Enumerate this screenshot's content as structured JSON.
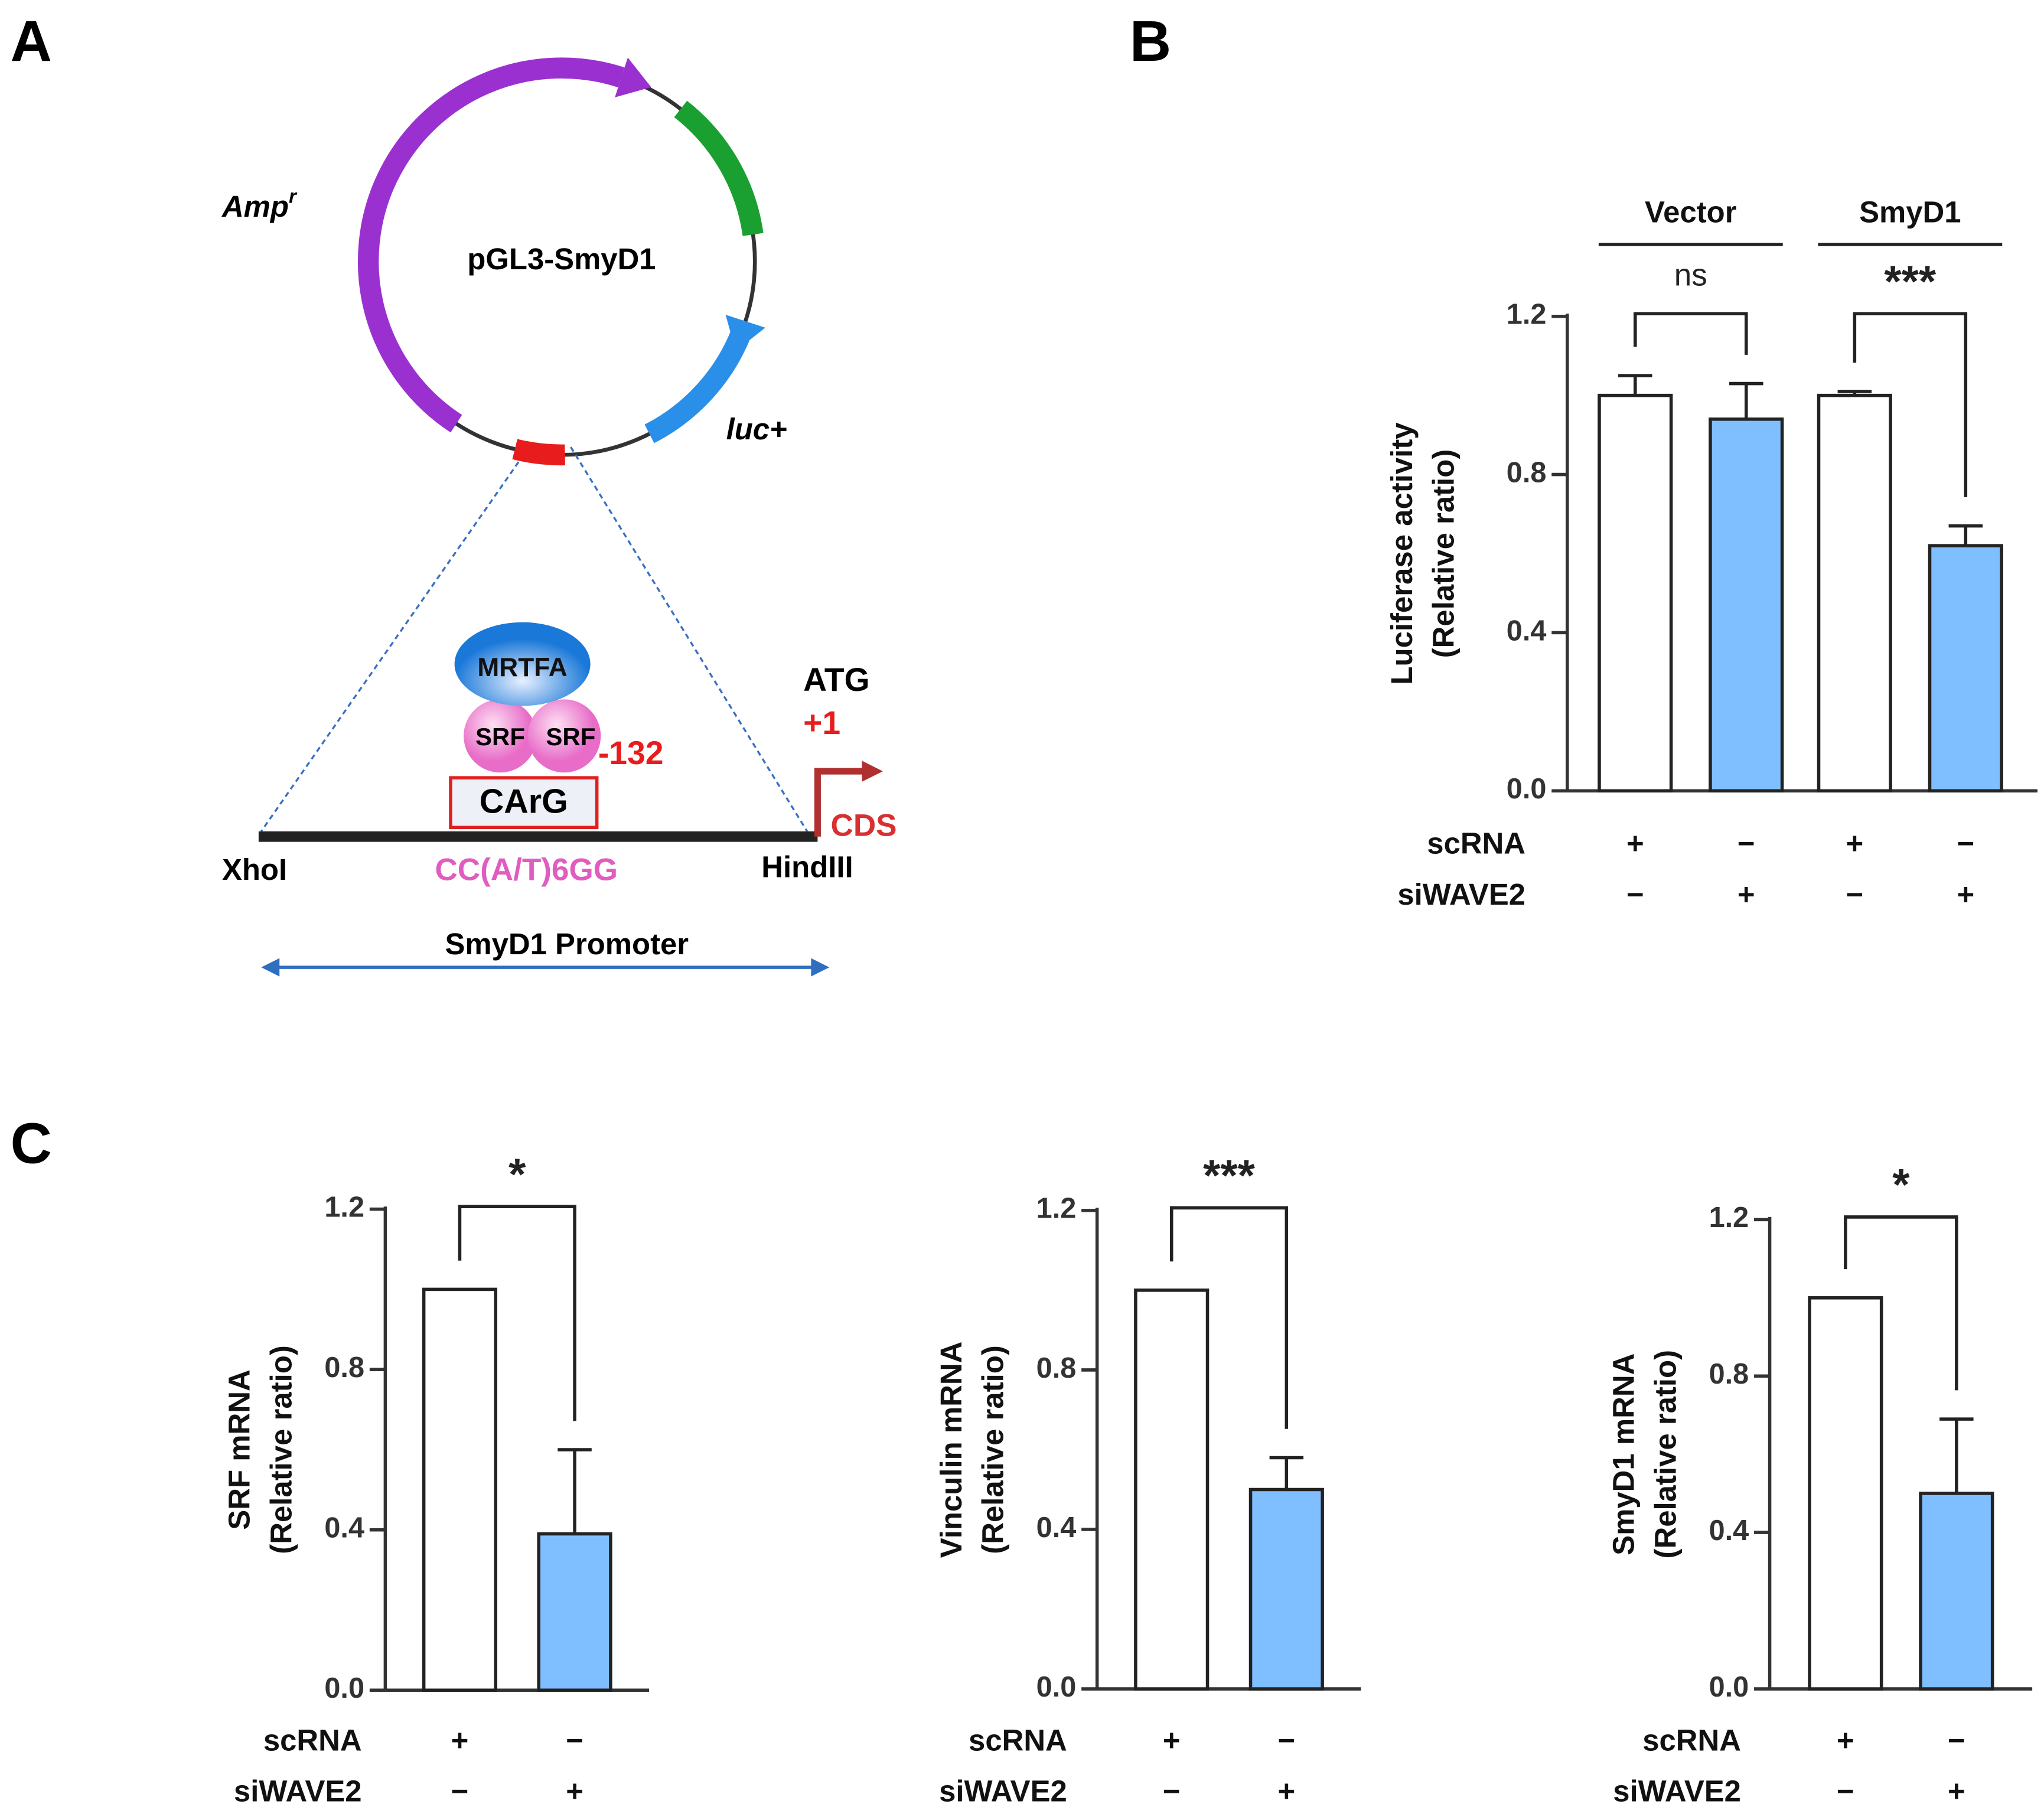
{
  "panel_labels": [
    "A",
    "B",
    "C"
  ],
  "diagram": {
    "plasmid": "pGL3-SmyD1",
    "amp_label": "Amp",
    "amp_superscript": "r",
    "luc_label": "luc+",
    "mrtfa": "MRTFA",
    "srf_left": "SRF",
    "srf_right": "SRF",
    "position": "-132",
    "box": "CArG",
    "atg": "ATG",
    "start": "+1",
    "cds": "CDS",
    "left_site": "XhoI",
    "motif": "CC(A/T)6GG",
    "right_site": "HindIII",
    "promoter": "SmyD1 Promoter"
  },
  "chart_data": [
    {
      "type": "bar",
      "ylabel": [
        "Luciferase activity",
        "(Relative ratio)"
      ],
      "values": [
        1.0,
        0.94,
        1.0,
        0.62
      ],
      "errors": [
        0.05,
        0.09,
        0.01,
        0.05
      ],
      "colors": [
        "#ffffff",
        "#7fbfff",
        "#ffffff",
        "#7fbfff"
      ],
      "ylim": [
        0,
        1.2
      ],
      "yticks": [
        {
          "value": 0,
          "label": "0.0"
        },
        0.4,
        0.8,
        1.2
      ],
      "conditions": [
        {
          "name": "scRNA",
          "values": [
            "+",
            "−",
            "+",
            "−"
          ]
        },
        {
          "name": "siWAVE2",
          "values": [
            "−",
            "+",
            "−",
            "+"
          ]
        }
      ],
      "groups": [
        "Vector",
        "SmyD1"
      ],
      "significance": [
        "ns",
        "***"
      ]
    },
    {
      "type": "bar",
      "ylabel": [
        "SRF mRNA",
        "(Relative ratio)"
      ],
      "values": [
        1.0,
        0.39
      ],
      "errors": [
        null,
        0.21
      ],
      "colors": [
        "#ffffff",
        "#7fbfff"
      ],
      "ylim": [
        0,
        1.2
      ],
      "yticks": [
        {
          "value": 0,
          "label": "0.0"
        },
        0.4,
        0.8,
        1.2
      ],
      "conditions": [
        {
          "name": "scRNA",
          "values": [
            "+",
            "−"
          ]
        },
        {
          "name": "siWAVE2",
          "values": [
            "−",
            "+"
          ]
        }
      ],
      "significance": [
        "*"
      ]
    },
    {
      "type": "bar",
      "ylabel": [
        "Vinculin mRNA",
        "(Relative ratio)"
      ],
      "values": [
        1.0,
        0.5
      ],
      "errors": [
        null,
        0.08
      ],
      "colors": [
        "#ffffff",
        "#7fbfff"
      ],
      "ylim": [
        0,
        1.2
      ],
      "yticks": [
        {
          "value": 0,
          "label": "0.0"
        },
        0.4,
        0.8,
        1.2
      ],
      "conditions": [
        {
          "name": "scRNA",
          "values": [
            "+",
            "−"
          ]
        },
        {
          "name": "siWAVE2",
          "values": [
            "−",
            "+"
          ]
        }
      ],
      "significance": [
        "***"
      ]
    },
    {
      "type": "bar",
      "ylabel": [
        "SmyD1 mRNA",
        "(Relative ratio)"
      ],
      "values": [
        1.0,
        0.5
      ],
      "errors": [
        null,
        0.19
      ],
      "colors": [
        "#ffffff",
        "#7fbfff"
      ],
      "ylim": [
        0,
        1.2
      ],
      "yticks": [
        {
          "value": 0,
          "label": "0.0"
        },
        0.4,
        0.8,
        1.2
      ],
      "conditions": [
        {
          "name": "scRNA",
          "values": [
            "+",
            "−"
          ]
        },
        {
          "name": "siWAVE2",
          "values": [
            "−",
            "+"
          ]
        }
      ],
      "significance": [
        "*"
      ]
    }
  ]
}
